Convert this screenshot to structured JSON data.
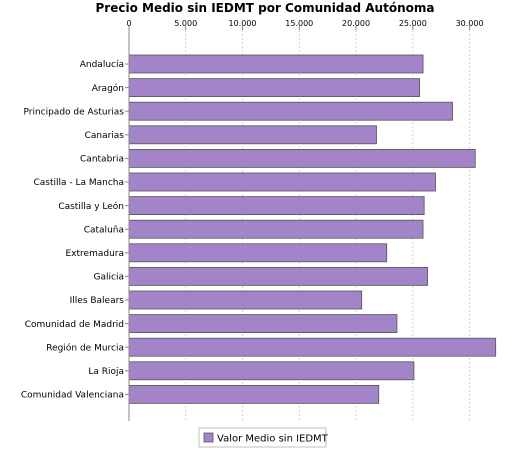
{
  "chart_data": {
    "type": "bar",
    "orientation": "horizontal",
    "title": "Precio Medio sin IEDMT por Comunidad Autónoma",
    "categories": [
      "Andalucía",
      "Aragón",
      "Principado de Asturias",
      "Canarias",
      "Cantabria",
      "Castilla - La Mancha",
      "Castilla y León",
      "Cataluña",
      "Extremadura",
      "Galicia",
      "Illes Balears",
      "Comunidad de Madrid",
      "Región de Murcia",
      "La Rioja",
      "Comunidad Valenciana"
    ],
    "series": [
      {
        "name": "Valor Medio sin IEDMT",
        "color": "#a384c8",
        "values": [
          25900,
          25600,
          28500,
          21800,
          30500,
          27000,
          26000,
          25900,
          22700,
          26300,
          20500,
          23600,
          32300,
          25100,
          22000
        ]
      }
    ],
    "xlim": [
      0,
      34000
    ],
    "xticks": [
      0,
      5000,
      10000,
      15000,
      20000,
      25000,
      30000
    ],
    "xtick_labels": [
      "0",
      "5.000",
      "10.000",
      "15.000",
      "20.000",
      "25.000",
      "30.000"
    ],
    "xaxis_position": "top",
    "grid": "vertical dashed",
    "legend": "bottom-center"
  }
}
